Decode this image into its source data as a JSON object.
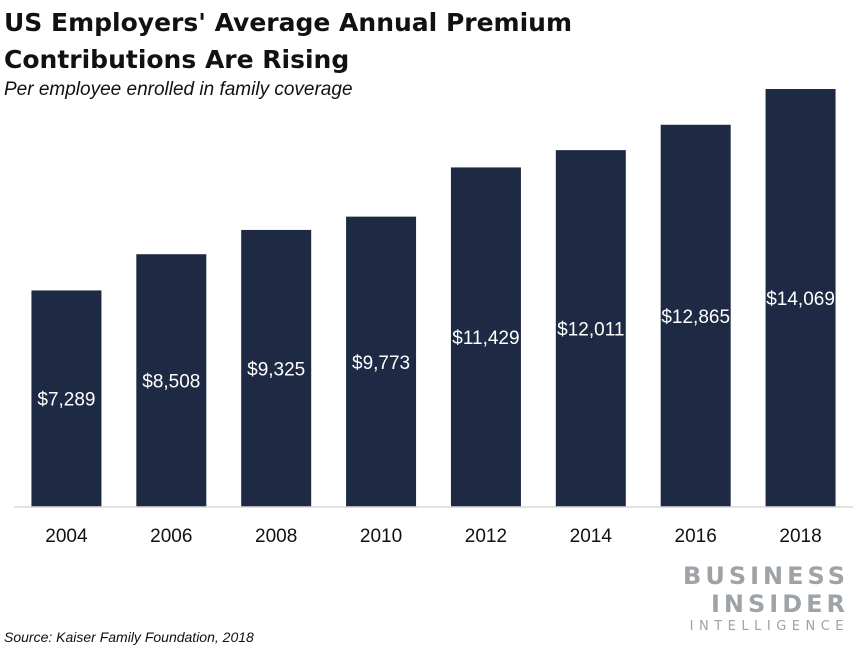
{
  "header": {
    "title": "US Employers' Average Annual Premium Contributions Are Rising",
    "subtitle": "Per employee enrolled in family coverage"
  },
  "footer": {
    "source": "Source: Kaiser Family Foundation, 2018"
  },
  "logo": {
    "line1": "BUSINESS",
    "line2": "INSIDER",
    "line3": "INTELLIGENCE"
  },
  "colors": {
    "bar": "#1e2a44",
    "axis": "#d9d9d9",
    "logo": "#9ea3a8"
  },
  "chart_data": {
    "type": "bar",
    "categories": [
      "2004",
      "2006",
      "2008",
      "2010",
      "2012",
      "2014",
      "2016",
      "2018"
    ],
    "values": [
      7289,
      8508,
      9325,
      9773,
      11429,
      12011,
      12865,
      14069
    ],
    "data_labels": [
      "$7,289",
      "$8,508",
      "$9,325",
      "$9,773",
      "$11,429",
      "$12,011",
      "$12,865",
      "$14,069"
    ],
    "title": "US Employers' Average Annual Premium Contributions Are Rising",
    "subtitle": "Per employee enrolled in family coverage",
    "xlabel": "",
    "ylabel": "",
    "ylim": [
      0,
      14069
    ],
    "grid": false,
    "legend": "none",
    "data_labels_position": "inside-center"
  }
}
